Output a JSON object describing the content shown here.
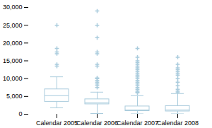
{
  "chart_data": {
    "type": "box",
    "categories": [
      "Calendar 2005",
      "Calendar 2006",
      "Calendar 2007",
      "Calendar 2008"
    ],
    "color": "#aaccdd",
    "ylim": [
      0,
      30000
    ],
    "yticks": [
      0,
      {
        "value": 5000,
        "label": "5,000"
      },
      {
        "value": 10000,
        "label": "10,000"
      },
      {
        "value": 15000,
        "label": "15,000"
      },
      {
        "value": 20000,
        "label": "20,000"
      },
      {
        "value": 25000,
        "label": "25,000"
      },
      {
        "value": 30000,
        "label": "30,000"
      }
    ],
    "grid": false,
    "boxes": [
      {
        "q1": 3500,
        "median": 5200,
        "q3": 7000,
        "whislo": 1800,
        "whishi": 10500,
        "fliers": [
          13500,
          14000,
          17000,
          17500,
          18500,
          25000
        ]
      },
      {
        "q1": 2800,
        "median": 3200,
        "q3": 4200,
        "whislo": 200,
        "whishi": 6200,
        "fliers": [
          7500,
          8000,
          8500,
          9000,
          9500,
          10000,
          10200,
          13500,
          14000,
          17000,
          17500,
          21500,
          25000,
          29000
        ]
      },
      {
        "q1": 900,
        "median": 1200,
        "q3": 2200,
        "whislo": 100,
        "whishi": 5200,
        "fliers": [
          6000,
          6200,
          6500,
          7000,
          7500,
          8000,
          8500,
          9000,
          9500,
          10000,
          10500,
          11000,
          11500,
          12000,
          12500,
          13000,
          13500,
          14000,
          14500,
          15000,
          16000,
          18500
        ]
      },
      {
        "q1": 800,
        "median": 1200,
        "q3": 2300,
        "whislo": 100,
        "whishi": 5800,
        "fliers": [
          6200,
          6500,
          7000,
          8000,
          9000,
          10000,
          11000,
          11500,
          12000,
          12500,
          13000,
          14000,
          16000
        ]
      }
    ]
  }
}
